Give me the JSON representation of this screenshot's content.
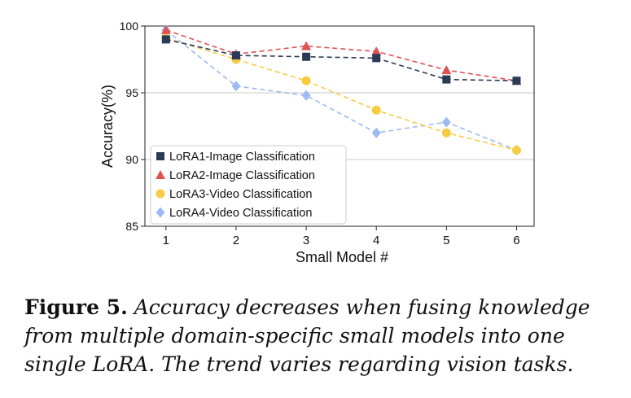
{
  "chart_data": {
    "type": "line",
    "title": "",
    "xlabel": "Small Model #",
    "ylabel": "Accuracy(%)",
    "x": [
      1,
      2,
      3,
      4,
      5,
      6
    ],
    "xlim": [
      0.7,
      6.25
    ],
    "ylim": [
      85,
      100
    ],
    "x_ticks": [
      "1",
      "2",
      "3",
      "4",
      "5",
      "6"
    ],
    "y_ticks": [
      "85",
      "90",
      "95",
      "100"
    ],
    "y_tick_values": [
      85,
      90,
      95,
      100
    ],
    "grid": "horizontal",
    "legend_position": "lower-left",
    "series": [
      {
        "name": "LoRA1-Image Classification",
        "color": "#2b3a55",
        "marker": "square",
        "values": [
          99.0,
          97.8,
          97.7,
          97.6,
          96.0,
          95.9
        ]
      },
      {
        "name": "LoRA2-Image Classification",
        "color": "#e05252",
        "marker": "triangle",
        "values": [
          99.7,
          97.9,
          98.5,
          98.1,
          96.7,
          95.9
        ]
      },
      {
        "name": "LoRA3-Video Classification",
        "color": "#f7cc45",
        "marker": "circle",
        "values": [
          99.1,
          97.5,
          95.9,
          93.7,
          92.0,
          90.7
        ]
      },
      {
        "name": "LoRA4-Video Classification",
        "color": "#9db9f2",
        "marker": "diamond",
        "values": [
          99.7,
          95.5,
          94.8,
          92.0,
          92.8,
          90.7
        ]
      }
    ]
  },
  "caption": {
    "label": "Figure 5.",
    "text": "Accuracy decreases when fusing knowledge from multiple domain-specific small models into one single LoRA. The trend varies regarding vision tasks."
  }
}
